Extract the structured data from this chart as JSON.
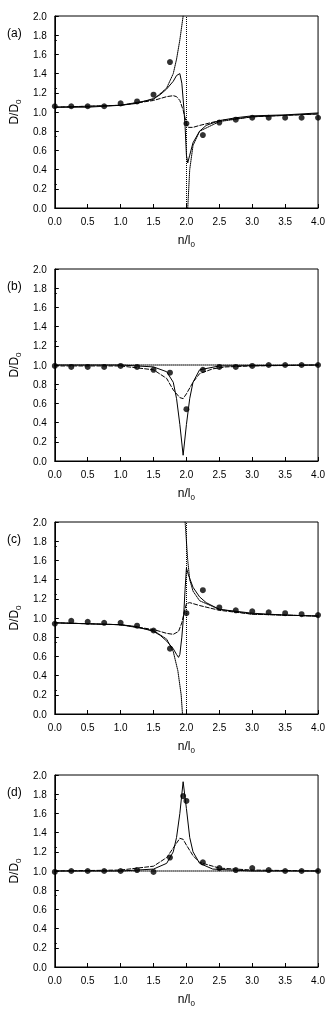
{
  "chart_data": [
    {
      "type": "scatter",
      "title": "(a)",
      "ref_lines": [
        {
          "axis": "x",
          "value": 2,
          "line_style": "dotted",
          "color": "#000000"
        }
      ],
      "xlabel": "n/l$_{0}$",
      "ylabel": "D/D$_{0}$",
      "xlim": [
        0,
        4
      ],
      "ylim": [
        0,
        2
      ],
      "xticks": [
        {
          "value": 0,
          "label": "0.0"
        },
        {
          "value": 0.5,
          "label": "0.5"
        },
        {
          "value": 1,
          "label": "1.0"
        },
        {
          "value": 1.5,
          "label": "1.5"
        },
        {
          "value": 2,
          "label": "2.0"
        },
        {
          "value": 2.5,
          "label": "2.5"
        },
        {
          "value": 3,
          "label": "3.0"
        },
        {
          "value": 3.5,
          "label": "3.5"
        },
        {
          "value": 4,
          "label": "4.0"
        }
      ],
      "yticks": [
        {
          "value": 0,
          "label": "0.0"
        },
        {
          "value": 0.2,
          "label": "0.2"
        },
        {
          "value": 0.4,
          "label": "0.4"
        },
        {
          "value": 0.6,
          "label": "0.6"
        },
        {
          "value": 0.8,
          "label": "0.8"
        },
        {
          "value": 1,
          "label": "1.0"
        },
        {
          "value": 1.2,
          "label": "1.2"
        },
        {
          "value": 1.4,
          "label": "1.4"
        },
        {
          "value": 1.6,
          "label": "1.6"
        },
        {
          "value": 1.8,
          "label": "1.8"
        },
        {
          "value": 2,
          "label": "2.0"
        }
      ],
      "series": [
        {
          "type": "line",
          "color": "#000000",
          "line_style": "dotted",
          "marker": "none",
          "x": [
            0,
            1,
            1.5,
            1.7,
            1.8,
            1.85,
            1.9,
            1.95
          ],
          "values": [
            1.05,
            1.07,
            1.13,
            1.25,
            1.4,
            1.55,
            1.75,
            2.0
          ]
        },
        {
          "type": "line",
          "color": "#000000",
          "line_style": "dotted",
          "marker": "none",
          "x": [
            2.02,
            2.05,
            2.1,
            2.2,
            2.5,
            3,
            4
          ],
          "values": [
            0.0,
            0.4,
            0.65,
            0.8,
            0.9,
            0.95,
            0.98
          ]
        },
        {
          "type": "line",
          "color": "#000000",
          "line_style": "solid",
          "marker": "none",
          "x": [
            0,
            0.5,
            1,
            1.25,
            1.5,
            1.6,
            1.7,
            1.8,
            1.85,
            1.9,
            1.93,
            1.96,
            1.98,
            2.0,
            2.02,
            2.05,
            2.1,
            2.2,
            2.3,
            2.5,
            2.75,
            3,
            3.5,
            4
          ],
          "values": [
            1.05,
            1.05,
            1.07,
            1.09,
            1.14,
            1.18,
            1.24,
            1.32,
            1.38,
            1.4,
            1.3,
            1.05,
            0.85,
            0.55,
            0.47,
            0.55,
            0.68,
            0.8,
            0.86,
            0.91,
            0.94,
            0.96,
            0.97,
            0.99
          ]
        },
        {
          "type": "line",
          "color": "#000000",
          "line_style": "dashed",
          "marker": "none",
          "x": [
            0,
            1,
            1.5,
            1.7,
            1.8,
            1.85,
            1.9,
            1.95,
            2.0,
            2.03,
            2.1,
            2.2,
            2.5,
            3,
            4
          ],
          "values": [
            1.05,
            1.07,
            1.12,
            1.16,
            1.17,
            1.16,
            1.12,
            1.02,
            0.88,
            0.84,
            0.84,
            0.86,
            0.91,
            0.95,
            0.98
          ]
        },
        {
          "type": "scatter",
          "color": "#000000",
          "marker": "circle",
          "x": [
            0,
            0.25,
            0.5,
            0.75,
            1,
            1.25,
            1.5,
            1.75,
            2,
            2.25,
            2.5,
            2.75,
            3,
            3.25,
            3.5,
            3.75,
            4
          ],
          "values": [
            1.06,
            1.06,
            1.06,
            1.06,
            1.09,
            1.11,
            1.18,
            1.52,
            0.88,
            0.76,
            0.89,
            0.92,
            0.94,
            0.94,
            0.94,
            0.94,
            0.94
          ]
        }
      ]
    },
    {
      "type": "scatter",
      "title": "(b)",
      "xlabel": "n/l$_{0}$",
      "ylabel": "D/D$_{0}$",
      "xlim": [
        0,
        4
      ],
      "ylim": [
        0,
        2
      ],
      "xticks": [
        {
          "value": 0,
          "label": "0.0"
        },
        {
          "value": 0.5,
          "label": "0.5"
        },
        {
          "value": 1,
          "label": "1.0"
        },
        {
          "value": 1.5,
          "label": "1.5"
        },
        {
          "value": 2,
          "label": "2.0"
        },
        {
          "value": 2.5,
          "label": "2.5"
        },
        {
          "value": 3,
          "label": "3.0"
        },
        {
          "value": 3.5,
          "label": "3.5"
        },
        {
          "value": 4,
          "label": "4.0"
        }
      ],
      "yticks": [
        {
          "value": 0,
          "label": "0.0"
        },
        {
          "value": 0.2,
          "label": "0.2"
        },
        {
          "value": 0.4,
          "label": "0.4"
        },
        {
          "value": 0.6,
          "label": "0.6"
        },
        {
          "value": 0.8,
          "label": "0.8"
        },
        {
          "value": 1,
          "label": "1.0"
        },
        {
          "value": 1.2,
          "label": "1.2"
        },
        {
          "value": 1.4,
          "label": "1.4"
        },
        {
          "value": 1.6,
          "label": "1.6"
        },
        {
          "value": 1.8,
          "label": "1.8"
        },
        {
          "value": 2,
          "label": "2.0"
        }
      ],
      "series": [
        {
          "type": "line",
          "color": "#000000",
          "line_style": "dotted",
          "marker": "none",
          "x": [
            0,
            4
          ],
          "values": [
            1.0,
            1.0
          ]
        },
        {
          "type": "line",
          "color": "#000000",
          "line_style": "solid",
          "marker": "none",
          "x": [
            0,
            1,
            1.5,
            1.7,
            1.8,
            1.85,
            1.9,
            1.95,
            2.0,
            2.05,
            2.1,
            2.2,
            2.5,
            4
          ],
          "values": [
            1.0,
            1.0,
            0.98,
            0.93,
            0.82,
            0.65,
            0.38,
            0.06,
            0.38,
            0.65,
            0.82,
            0.95,
            0.99,
            1.0
          ]
        },
        {
          "type": "line",
          "color": "#000000",
          "line_style": "dashed",
          "marker": "none",
          "x": [
            0,
            1,
            1.5,
            1.7,
            1.8,
            1.9,
            1.95,
            2.0,
            2.1,
            2.2,
            2.4,
            2.6,
            3,
            4
          ],
          "values": [
            0.99,
            0.99,
            0.95,
            0.86,
            0.74,
            0.66,
            0.65,
            0.7,
            0.82,
            0.91,
            0.96,
            0.98,
            0.99,
            1.0
          ]
        },
        {
          "type": "scatter",
          "color": "#000000",
          "marker": "circle",
          "x": [
            0,
            0.25,
            0.5,
            0.75,
            1,
            1.25,
            1.5,
            1.75,
            2,
            2.25,
            2.5,
            2.75,
            3,
            3.25,
            3.5,
            3.75,
            4
          ],
          "values": [
            0.99,
            0.98,
            0.98,
            0.98,
            0.99,
            0.98,
            0.95,
            0.92,
            0.54,
            0.95,
            0.98,
            0.98,
            0.99,
            1.0,
            1.0,
            1.0,
            1.0
          ]
        }
      ]
    },
    {
      "type": "scatter",
      "title": "(c)",
      "ref_lines": [
        {
          "axis": "x",
          "value": 2,
          "line_style": "dotted",
          "color": "#000000"
        }
      ],
      "xlabel": "n/l$_{0}$",
      "ylabel": "D/D$_{0}$",
      "xlim": [
        0,
        4
      ],
      "ylim": [
        0,
        2
      ],
      "xticks": [
        {
          "value": 0,
          "label": "0.0"
        },
        {
          "value": 0.5,
          "label": "0.5"
        },
        {
          "value": 1,
          "label": "1.0"
        },
        {
          "value": 1.5,
          "label": "1.5"
        },
        {
          "value": 2,
          "label": "2.0"
        },
        {
          "value": 2.5,
          "label": "2.5"
        },
        {
          "value": 3,
          "label": "3.0"
        },
        {
          "value": 3.5,
          "label": "3.5"
        },
        {
          "value": 4,
          "label": "4.0"
        }
      ],
      "yticks": [
        {
          "value": 0,
          "label": "0.0"
        },
        {
          "value": 0.2,
          "label": "0.2"
        },
        {
          "value": 0.4,
          "label": "0.4"
        },
        {
          "value": 0.6,
          "label": "0.6"
        },
        {
          "value": 0.8,
          "label": "0.8"
        },
        {
          "value": 1,
          "label": "1.0"
        },
        {
          "value": 1.2,
          "label": "1.2"
        },
        {
          "value": 1.4,
          "label": "1.4"
        },
        {
          "value": 1.6,
          "label": "1.6"
        },
        {
          "value": 1.8,
          "label": "1.8"
        },
        {
          "value": 2,
          "label": "2.0"
        }
      ],
      "series": [
        {
          "type": "line",
          "color": "#000000",
          "line_style": "dotted",
          "marker": "none",
          "x": [
            0,
            1,
            1.5,
            1.7,
            1.8,
            1.87,
            1.92,
            1.94
          ],
          "values": [
            0.95,
            0.93,
            0.87,
            0.78,
            0.65,
            0.45,
            0.2,
            0.0
          ]
        },
        {
          "type": "line",
          "color": "#000000",
          "line_style": "dotted",
          "marker": "none",
          "x": [
            1.98,
            2.02,
            2.05,
            2.1,
            2.2,
            2.5,
            3,
            4
          ],
          "values": [
            2.0,
            1.6,
            1.4,
            1.28,
            1.18,
            1.09,
            1.04,
            1.02
          ]
        },
        {
          "type": "line",
          "color": "#000000",
          "line_style": "solid",
          "marker": "none",
          "x": [
            0,
            1,
            1.25,
            1.5,
            1.6,
            1.7,
            1.8,
            1.85,
            1.88,
            1.9,
            1.93,
            1.96,
            1.98,
            2.0,
            2.03,
            2.1,
            2.2,
            2.3,
            2.5,
            3,
            3.5,
            4
          ],
          "values": [
            0.95,
            0.93,
            0.91,
            0.86,
            0.82,
            0.76,
            0.68,
            0.62,
            0.59,
            0.62,
            0.8,
            1.05,
            1.3,
            1.52,
            1.45,
            1.32,
            1.22,
            1.16,
            1.09,
            1.05,
            1.03,
            1.02
          ]
        },
        {
          "type": "line",
          "color": "#000000",
          "line_style": "dashed",
          "marker": "none",
          "x": [
            0,
            1,
            1.5,
            1.7,
            1.8,
            1.88,
            1.93,
            1.97,
            2.0,
            2.05,
            2.2,
            2.5,
            3,
            4
          ],
          "values": [
            0.95,
            0.93,
            0.88,
            0.84,
            0.83,
            0.86,
            0.95,
            1.07,
            1.15,
            1.16,
            1.13,
            1.08,
            1.04,
            1.02
          ]
        },
        {
          "type": "scatter",
          "color": "#000000",
          "marker": "circle",
          "x": [
            0,
            0.25,
            0.5,
            0.75,
            1,
            1.25,
            1.5,
            1.75,
            2,
            2.25,
            2.5,
            2.75,
            3,
            3.25,
            3.5,
            3.75,
            4
          ],
          "values": [
            0.94,
            0.97,
            0.96,
            0.95,
            0.95,
            0.92,
            0.87,
            0.68,
            1.05,
            1.29,
            1.11,
            1.08,
            1.07,
            1.06,
            1.05,
            1.04,
            1.03
          ]
        }
      ]
    },
    {
      "type": "scatter",
      "title": "(d)",
      "xlabel": "n/l$_{0}$",
      "ylabel": "D/D$_{0}$",
      "xlim": [
        0,
        4
      ],
      "ylim": [
        0,
        2
      ],
      "xticks": [
        {
          "value": 0,
          "label": "0.0"
        },
        {
          "value": 0.5,
          "label": "0.5"
        },
        {
          "value": 1,
          "label": "1.0"
        },
        {
          "value": 1.5,
          "label": "1.5"
        },
        {
          "value": 2,
          "label": "2.0"
        },
        {
          "value": 2.5,
          "label": "2.5"
        },
        {
          "value": 3,
          "label": "3.0"
        },
        {
          "value": 3.5,
          "label": "3.5"
        },
        {
          "value": 4,
          "label": "4.0"
        }
      ],
      "yticks": [
        {
          "value": 0,
          "label": "0.0"
        },
        {
          "value": 0.2,
          "label": "0.2"
        },
        {
          "value": 0.4,
          "label": "0.4"
        },
        {
          "value": 0.6,
          "label": "0.6"
        },
        {
          "value": 0.8,
          "label": "0.8"
        },
        {
          "value": 1,
          "label": "1.0"
        },
        {
          "value": 1.2,
          "label": "1.2"
        },
        {
          "value": 1.4,
          "label": "1.4"
        },
        {
          "value": 1.6,
          "label": "1.6"
        },
        {
          "value": 1.8,
          "label": "1.8"
        },
        {
          "value": 2,
          "label": "2.0"
        }
      ],
      "series": [
        {
          "type": "line",
          "color": "#000000",
          "line_style": "dotted",
          "marker": "none",
          "x": [
            0,
            4
          ],
          "values": [
            1.0,
            1.0
          ]
        },
        {
          "type": "line",
          "color": "#000000",
          "line_style": "solid",
          "marker": "none",
          "x": [
            0,
            1,
            1.5,
            1.7,
            1.8,
            1.85,
            1.9,
            1.95,
            2.0,
            2.05,
            2.1,
            2.2,
            2.4,
            3,
            4
          ],
          "values": [
            1.0,
            1.0,
            1.02,
            1.08,
            1.2,
            1.35,
            1.6,
            1.93,
            1.65,
            1.35,
            1.2,
            1.08,
            1.02,
            1.0,
            1.0
          ]
        },
        {
          "type": "line",
          "color": "#000000",
          "line_style": "dashed",
          "marker": "none",
          "x": [
            0,
            1,
            1.5,
            1.7,
            1.8,
            1.9,
            1.95,
            2.0,
            2.1,
            2.2,
            2.5,
            3,
            4
          ],
          "values": [
            1.0,
            1.01,
            1.05,
            1.14,
            1.24,
            1.34,
            1.33,
            1.27,
            1.16,
            1.09,
            1.03,
            1.01,
            1.0
          ]
        },
        {
          "type": "scatter",
          "color": "#000000",
          "marker": "circle",
          "x": [
            0,
            0.25,
            0.5,
            0.75,
            1,
            1.25,
            1.5,
            1.75,
            1.95,
            2,
            2.25,
            2.5,
            2.75,
            3,
            3.25,
            3.5,
            3.75,
            4
          ],
          "values": [
            0.99,
            1.0,
            1.0,
            1.0,
            1.0,
            1.01,
            0.99,
            1.14,
            1.78,
            1.73,
            1.09,
            1.03,
            1.01,
            1.03,
            1.01,
            1.0,
            1.0,
            1.0
          ]
        }
      ]
    }
  ]
}
